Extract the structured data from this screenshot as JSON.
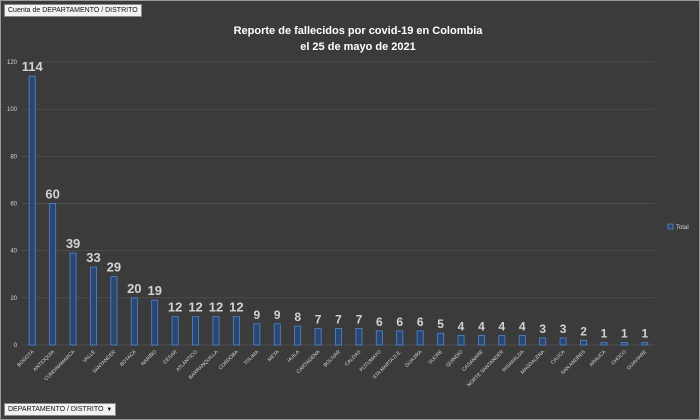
{
  "ui": {
    "filter_field": "Cuenta de DEPARTAMENTO / DISTRITO",
    "axis_field": "DEPARTAMENTO / DISTRITO",
    "dropdown_glyph": "▼"
  },
  "colors": {
    "background": "#3b3b3b",
    "bar_fill": "#2a4770",
    "bar_stroke": "#4f86d8",
    "grid": "#555555"
  },
  "chart_data": {
    "type": "bar",
    "title": "Reporte de fallecidos por covid-19 en Colombia",
    "subtitle": "el 25 de mayo de 2021",
    "xlabel": "",
    "ylabel": "",
    "ylim": [
      0,
      120
    ],
    "yticks": [
      0,
      20,
      40,
      60,
      80,
      100,
      120
    ],
    "grid": true,
    "legend_position": "right",
    "categories": [
      "BOGOTÁ",
      "ANTIOQUIA",
      "CUNDINAMARCA",
      "VALLE",
      "SANTANDER",
      "BOYACÁ",
      "NARIÑO",
      "CESAR",
      "ATLÁNTICO",
      "BARRANQUILLA",
      "CORDOBA",
      "TOLIMA",
      "META",
      "HUILA",
      "CARTAGENA",
      "BOLIVAR",
      "CALDAS",
      "PUTUMAYO",
      "STA MARTA D.E.",
      "GUAJIRA",
      "SUCRE",
      "QUINDIO",
      "CASANARE",
      "NORTE SANTANDER",
      "RISARALDA",
      "MAGDALENA",
      "CAUCA",
      "SAN ANDRES",
      "ARAUCA",
      "CHOCO",
      "GUAVIARE"
    ],
    "series": [
      {
        "name": "Total",
        "values": [
          114,
          60,
          39,
          33,
          29,
          20,
          19,
          12,
          12,
          12,
          12,
          9,
          9,
          8,
          7,
          7,
          7,
          6,
          6,
          6,
          5,
          4,
          4,
          4,
          4,
          3,
          3,
          2,
          1,
          1,
          1
        ]
      }
    ]
  }
}
